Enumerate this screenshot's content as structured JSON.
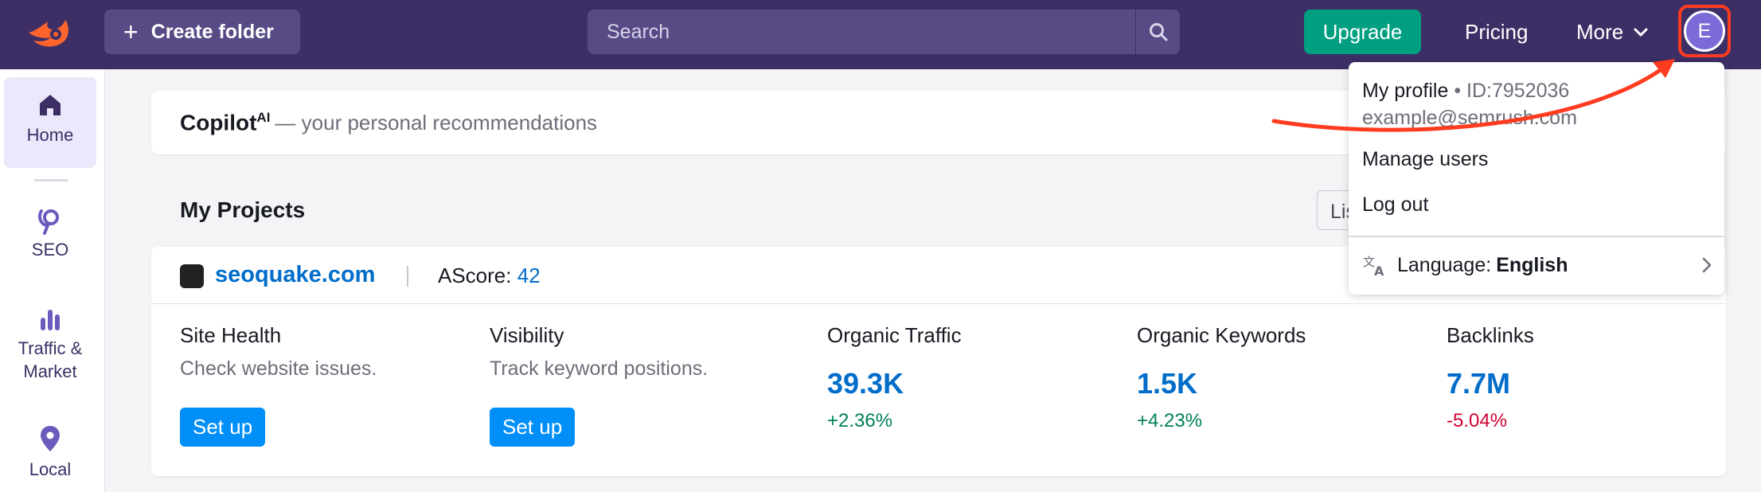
{
  "header": {
    "logo_icon": "semrush-fireball-icon",
    "create_label": "Create folder",
    "search_placeholder": "Search",
    "upgrade_label": "Upgrade",
    "pricing_label": "Pricing",
    "more_label": "More",
    "avatar_letter": "E"
  },
  "sidebar": {
    "items": [
      {
        "label": "Home",
        "icon": "home-icon",
        "active": true
      },
      {
        "label": "SEO",
        "icon": "seo-icon"
      },
      {
        "label": "Traffic &\nMarket",
        "icon": "bar-chart-icon"
      },
      {
        "label": "Local",
        "icon": "location-pin-icon"
      }
    ]
  },
  "copilot": {
    "name": "Copilot",
    "sup": "AI",
    "subtitle": "— your personal recommendations"
  },
  "projects": {
    "title": "My Projects",
    "view_chip": "List",
    "project": {
      "domain": "seoquake.com",
      "ascore_label": "AScore:",
      "ascore_value": "42",
      "metrics": {
        "site_health": {
          "label": "Site Health",
          "desc": "Check website issues.",
          "button": "Set up"
        },
        "visibility": {
          "label": "Visibility",
          "desc": "Track keyword positions.",
          "button": "Set up"
        },
        "organic_traffic": {
          "label": "Organic Traffic",
          "value": "39.3K",
          "delta": "+2.36%"
        },
        "organic_keywords": {
          "label": "Organic Keywords",
          "value": "1.5K",
          "delta": "+4.23%"
        },
        "backlinks": {
          "label": "Backlinks",
          "value": "7.7M",
          "delta": "-5.04%"
        }
      }
    }
  },
  "dropdown": {
    "profile_label": "My profile",
    "profile_id": "• ID:7952036",
    "email": "example@semrush.com",
    "manage_users": "Manage users",
    "log_out": "Log out",
    "language_label": "Language:",
    "language_value": "English"
  },
  "colors": {
    "header_bg": "#3d2f66",
    "accent_blue": "#006dca",
    "upgrade_green": "#009f81",
    "positive": "#00805c",
    "negative": "#d1002f",
    "annotation_red": "#ff3b20"
  }
}
